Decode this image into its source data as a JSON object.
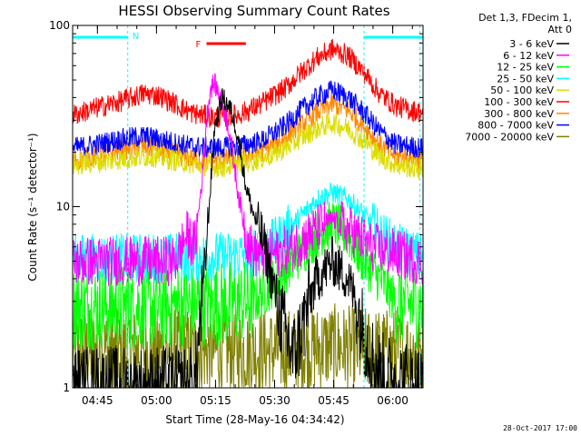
{
  "chart_data": {
    "type": "line",
    "title": "HESSI Observing Summary Count Rates",
    "xlabel": "Start Time (28-May-16 04:34:42)",
    "ylabel": "Count Rate (s⁻¹ detector⁻¹)",
    "yscale": "log",
    "ylim": [
      1,
      100
    ],
    "xlim_minutes": [
      4.0,
      93.0
    ],
    "ytick_labels": [
      {
        "value": 1,
        "label": "1"
      },
      {
        "value": 10,
        "label": "10"
      },
      {
        "value": 100,
        "label": "100"
      }
    ],
    "xtick_labels": [
      {
        "t": 10.3,
        "label": "04:45"
      },
      {
        "t": 25.3,
        "label": "05:00"
      },
      {
        "t": 40.3,
        "label": "05:15"
      },
      {
        "t": 55.3,
        "label": "05:30"
      },
      {
        "t": 70.3,
        "label": "05:45"
      },
      {
        "t": 85.3,
        "label": "06:00"
      }
    ],
    "legend_header": [
      "Det 1,3, FDecim 1,",
      "Att 0"
    ],
    "legend_position": "right",
    "night_marker": "N",
    "flare_marker": "F",
    "flare_interval": [
      38.0,
      48.0
    ],
    "night_intervals": [
      [
        4.0,
        18.0
      ],
      [
        78.0,
        93.0
      ]
    ],
    "night_boundaries": [
      18.0,
      78.0
    ],
    "series": [
      {
        "name": "3 - 6 keV",
        "color": "#000000",
        "points": [
          [
            4,
            1.0
          ],
          [
            35,
            1.0
          ],
          [
            38,
            6
          ],
          [
            40,
            27
          ],
          [
            42,
            40
          ],
          [
            44,
            35
          ],
          [
            46,
            25
          ],
          [
            48,
            13
          ],
          [
            50,
            9
          ],
          [
            52,
            7
          ],
          [
            54,
            4.5
          ],
          [
            56,
            3
          ],
          [
            58,
            2
          ],
          [
            60,
            1.5
          ],
          [
            62,
            2
          ],
          [
            64,
            3
          ],
          [
            66,
            4
          ],
          [
            70,
            5
          ],
          [
            74,
            4
          ],
          [
            76,
            3
          ],
          [
            78,
            2
          ],
          [
            80,
            1.5
          ],
          [
            82,
            1.2
          ],
          [
            93,
            1.0
          ]
        ]
      },
      {
        "name": "6 - 12 keV",
        "color": "#ff00ff",
        "points": [
          [
            4,
            5.0
          ],
          [
            30,
            5.0
          ],
          [
            33,
            7
          ],
          [
            35,
            6
          ],
          [
            37,
            15
          ],
          [
            38,
            30
          ],
          [
            39,
            45
          ],
          [
            40,
            48
          ],
          [
            42,
            38
          ],
          [
            44,
            25
          ],
          [
            46,
            12
          ],
          [
            48,
            7
          ],
          [
            50,
            5.5
          ],
          [
            56,
            5.5
          ],
          [
            60,
            6
          ],
          [
            64,
            7
          ],
          [
            68,
            8
          ],
          [
            70,
            8.5
          ],
          [
            72,
            8
          ],
          [
            76,
            7
          ],
          [
            80,
            6
          ],
          [
            93,
            5.0
          ]
        ]
      },
      {
        "name": "12 - 25 keV",
        "color": "#00ff00",
        "points": [
          [
            4,
            2.8
          ],
          [
            20,
            2.8
          ],
          [
            40,
            2.9
          ],
          [
            50,
            3.0
          ],
          [
            56,
            4
          ],
          [
            60,
            5
          ],
          [
            66,
            7
          ],
          [
            70,
            8
          ],
          [
            74,
            7
          ],
          [
            78,
            5
          ],
          [
            82,
            4
          ],
          [
            86,
            3
          ],
          [
            93,
            2.8
          ]
        ]
      },
      {
        "name": "25 - 50 keV",
        "color": "#00ffff",
        "points": [
          [
            4,
            5.2
          ],
          [
            20,
            5.2
          ],
          [
            40,
            5.3
          ],
          [
            50,
            5.5
          ],
          [
            56,
            6.5
          ],
          [
            60,
            8
          ],
          [
            66,
            11
          ],
          [
            70,
            12
          ],
          [
            74,
            11
          ],
          [
            78,
            9
          ],
          [
            82,
            7
          ],
          [
            86,
            6
          ],
          [
            93,
            5.2
          ]
        ]
      },
      {
        "name": "50 - 100 keV",
        "color": "#dddd00",
        "points": [
          [
            4,
            17
          ],
          [
            18,
            18.5
          ],
          [
            24,
            19
          ],
          [
            30,
            18
          ],
          [
            36,
            17
          ],
          [
            42,
            16.5
          ],
          [
            48,
            17.5
          ],
          [
            54,
            19
          ],
          [
            58,
            21
          ],
          [
            62,
            24
          ],
          [
            66,
            27
          ],
          [
            70,
            29
          ],
          [
            74,
            27
          ],
          [
            78,
            23
          ],
          [
            82,
            19
          ],
          [
            86,
            17
          ],
          [
            93,
            16
          ]
        ]
      },
      {
        "name": "100 - 300 keV",
        "color": "#ff0000",
        "points": [
          [
            4,
            32
          ],
          [
            10,
            35
          ],
          [
            16,
            38
          ],
          [
            22,
            42
          ],
          [
            26,
            41
          ],
          [
            30,
            37
          ],
          [
            34,
            33
          ],
          [
            40,
            31
          ],
          [
            46,
            32
          ],
          [
            52,
            37
          ],
          [
            58,
            45
          ],
          [
            62,
            55
          ],
          [
            66,
            66
          ],
          [
            70,
            74
          ],
          [
            74,
            68
          ],
          [
            78,
            55
          ],
          [
            82,
            42
          ],
          [
            86,
            36
          ],
          [
            90,
            34
          ],
          [
            93,
            33
          ]
        ]
      },
      {
        "name": "300 - 800 keV",
        "color": "#ff8800",
        "points": [
          [
            4,
            18
          ],
          [
            10,
            19
          ],
          [
            16,
            20.5
          ],
          [
            22,
            21.5
          ],
          [
            28,
            20
          ],
          [
            34,
            18.5
          ],
          [
            40,
            18
          ],
          [
            46,
            18.5
          ],
          [
            52,
            20
          ],
          [
            58,
            24
          ],
          [
            62,
            28
          ],
          [
            66,
            33
          ],
          [
            70,
            37
          ],
          [
            74,
            34
          ],
          [
            78,
            28
          ],
          [
            82,
            22
          ],
          [
            86,
            19
          ],
          [
            93,
            18
          ]
        ]
      },
      {
        "name": "800 - 7000 keV",
        "color": "#0000ff",
        "points": [
          [
            4,
            21
          ],
          [
            10,
            22
          ],
          [
            16,
            23.5
          ],
          [
            22,
            24.5
          ],
          [
            28,
            23
          ],
          [
            34,
            21.5
          ],
          [
            40,
            21
          ],
          [
            46,
            21.5
          ],
          [
            52,
            23
          ],
          [
            58,
            28
          ],
          [
            62,
            34
          ],
          [
            66,
            40
          ],
          [
            70,
            44
          ],
          [
            74,
            40
          ],
          [
            78,
            33
          ],
          [
            82,
            26
          ],
          [
            86,
            22
          ],
          [
            93,
            21
          ]
        ]
      },
      {
        "name": "7000 - 20000 keV",
        "color": "#808000",
        "points": [
          [
            4,
            1.6
          ],
          [
            20,
            1.6
          ],
          [
            40,
            1.6
          ],
          [
            60,
            1.6
          ],
          [
            70,
            1.7
          ],
          [
            80,
            1.6
          ],
          [
            93,
            1.6
          ]
        ]
      }
    ],
    "legend_order": [
      0,
      1,
      2,
      3,
      4,
      5,
      6,
      7,
      8
    ],
    "footer_stamp": "28-Oct-2017 17:00"
  }
}
